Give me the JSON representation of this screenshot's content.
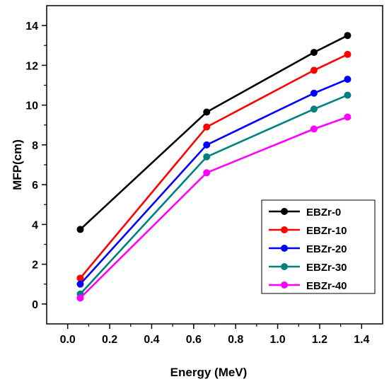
{
  "chart_data": {
    "type": "line",
    "xlabel": "Energy (MeV)",
    "ylabel": "MFP(cm)",
    "xlim": [
      -0.1,
      1.5
    ],
    "ylim": [
      -1,
      15
    ],
    "x_ticks": [
      0.0,
      0.2,
      0.4,
      0.6,
      0.8,
      1.0,
      1.2,
      1.4
    ],
    "x_tick_labels": [
      "0.0",
      "0.2",
      "0.4",
      "0.6",
      "0.8",
      "1.0",
      "1.2",
      "1.4"
    ],
    "y_ticks": [
      0,
      2,
      4,
      6,
      8,
      10,
      12,
      14
    ],
    "y_tick_labels": [
      "0",
      "2",
      "4",
      "6",
      "8",
      "10",
      "12",
      "14"
    ],
    "grid": false,
    "legend_position": "bottom-right",
    "x": [
      0.06,
      0.662,
      1.173,
      1.333
    ],
    "series": [
      {
        "name": "EBZr-0",
        "color": "#000000",
        "values": [
          3.75,
          9.65,
          12.65,
          13.5
        ]
      },
      {
        "name": "EBZr-10",
        "color": "#ff0000",
        "values": [
          1.3,
          8.9,
          11.75,
          12.55
        ]
      },
      {
        "name": "EBZr-20",
        "color": "#0000ff",
        "values": [
          1.0,
          8.0,
          10.6,
          11.3
        ]
      },
      {
        "name": "EBZr-30",
        "color": "#008080",
        "values": [
          0.5,
          7.4,
          9.8,
          10.5
        ]
      },
      {
        "name": "EBZr-40",
        "color": "#ff00ff",
        "values": [
          0.3,
          6.6,
          8.8,
          9.4
        ]
      }
    ]
  }
}
